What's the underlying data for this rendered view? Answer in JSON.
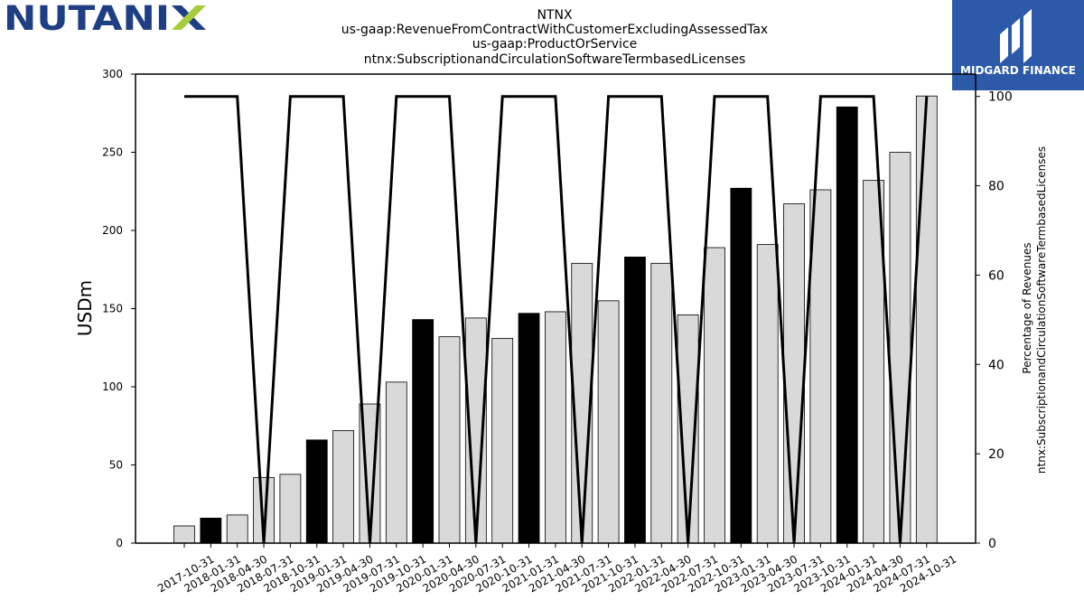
{
  "logos": {
    "company_logo_text": "NUTANIX",
    "brand_badge_text": "MIDGARD FINANCE",
    "brand_badge_color": "#2c5aa8",
    "company_logo_color": "#1f3f84",
    "company_logo_accent": "#a6cc3b"
  },
  "chart_data": {
    "type": "bar",
    "title_lines": [
      "NTNX",
      "us-gaap:RevenueFromContractWithCustomerExcludingAssessedTax",
      "us-gaap:ProductOrService",
      "ntnx:SubscriptionandCirculationSoftwareTermbasedLicenses"
    ],
    "ylabel": "USDm",
    "ylabel_right_lines": [
      "Percentage of Revenues",
      "ntnx:SubscriptionandCirculationSoftwareTermbasedLicenses"
    ],
    "ylim": [
      0,
      300
    ],
    "ylim_right": [
      0,
      105
    ],
    "yticks": [
      0,
      50,
      100,
      150,
      200,
      250,
      300
    ],
    "yticks_right": [
      0,
      20,
      40,
      60,
      80,
      100
    ],
    "categories": [
      "2017-10-31",
      "2018-01-31",
      "2018-04-30",
      "2018-07-31",
      "2018-10-31",
      "2019-01-31",
      "2019-04-30",
      "2019-07-31",
      "2019-10-31",
      "2020-01-31",
      "2020-04-30",
      "2020-07-31",
      "2020-10-31",
      "2021-01-31",
      "2021-04-30",
      "2021-07-31",
      "2021-10-31",
      "2022-01-31",
      "2022-04-30",
      "2022-07-31",
      "2022-10-31",
      "2023-01-31",
      "2023-04-30",
      "2023-07-31",
      "2023-10-31",
      "2024-01-31",
      "2024-04-30",
      "2024-07-31",
      "2024-10-31"
    ],
    "series": [
      {
        "kind": "bar",
        "values": [
          11,
          16,
          18,
          42,
          44,
          66,
          72,
          89,
          103,
          143,
          132,
          144,
          131,
          147,
          148,
          179,
          155,
          183,
          179,
          146,
          189,
          227,
          191,
          217,
          226,
          279,
          232,
          250,
          286
        ],
        "highlight": [
          false,
          true,
          false,
          false,
          false,
          true,
          false,
          false,
          false,
          true,
          false,
          false,
          false,
          true,
          false,
          false,
          false,
          true,
          false,
          false,
          false,
          true,
          false,
          false,
          false,
          true,
          false,
          false,
          false
        ],
        "color": "#d9d9d9",
        "highlight_color": "#000000"
      },
      {
        "kind": "line",
        "axis": "right",
        "values": [
          100,
          100,
          100,
          0,
          100,
          100,
          100,
          0,
          100,
          100,
          100,
          0,
          100,
          100,
          100,
          0,
          100,
          100,
          100,
          0,
          100,
          100,
          100,
          0,
          100,
          100,
          100,
          0,
          100
        ],
        "color": "#000000"
      }
    ],
    "grid": false,
    "legend": "none"
  }
}
